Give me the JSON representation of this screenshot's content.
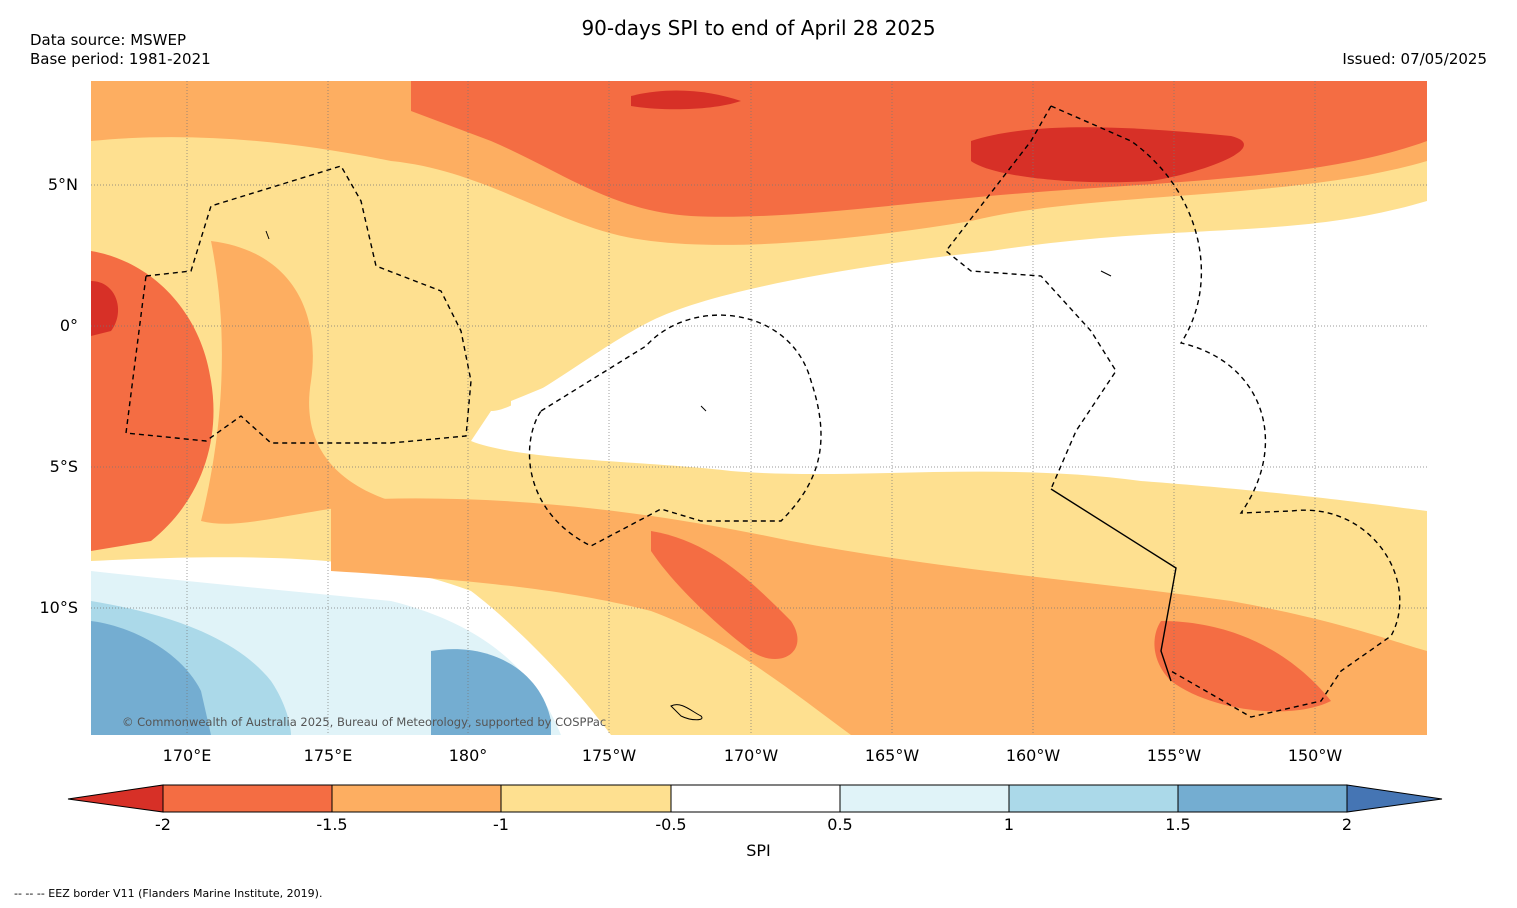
{
  "header": {
    "title": "90-days SPI to end of April 28 2025",
    "data_source": "Data source: MSWEP",
    "base_period": "Base period: 1981-2021",
    "issued": "Issued: 07/05/2025"
  },
  "map": {
    "lat_labels": [
      "5°N",
      "0°",
      "5°S",
      "10°S"
    ],
    "lon_labels": [
      "170°E",
      "175°E",
      "180°",
      "175°W",
      "170°W",
      "165°W",
      "160°W",
      "155°W",
      "150°W"
    ],
    "copyright": "© Commonwealth of Australia 2025, Bureau of Meteorology, supported by COSPPac"
  },
  "colorbar": {
    "label": "SPI",
    "ticks": [
      "-2",
      "-1.5",
      "-1",
      "-0.5",
      "0.5",
      "1",
      "1.5",
      "2"
    ],
    "colors": [
      "#d73027",
      "#f46d43",
      "#fdae61",
      "#fee090",
      "#ffffff",
      "#e0f3f8",
      "#abd9e9",
      "#74add1",
      "#4575b4"
    ]
  },
  "legend": {
    "eez": "--  --  -- EEZ border V11 (Flanders Marine Institute, 2019)."
  }
}
